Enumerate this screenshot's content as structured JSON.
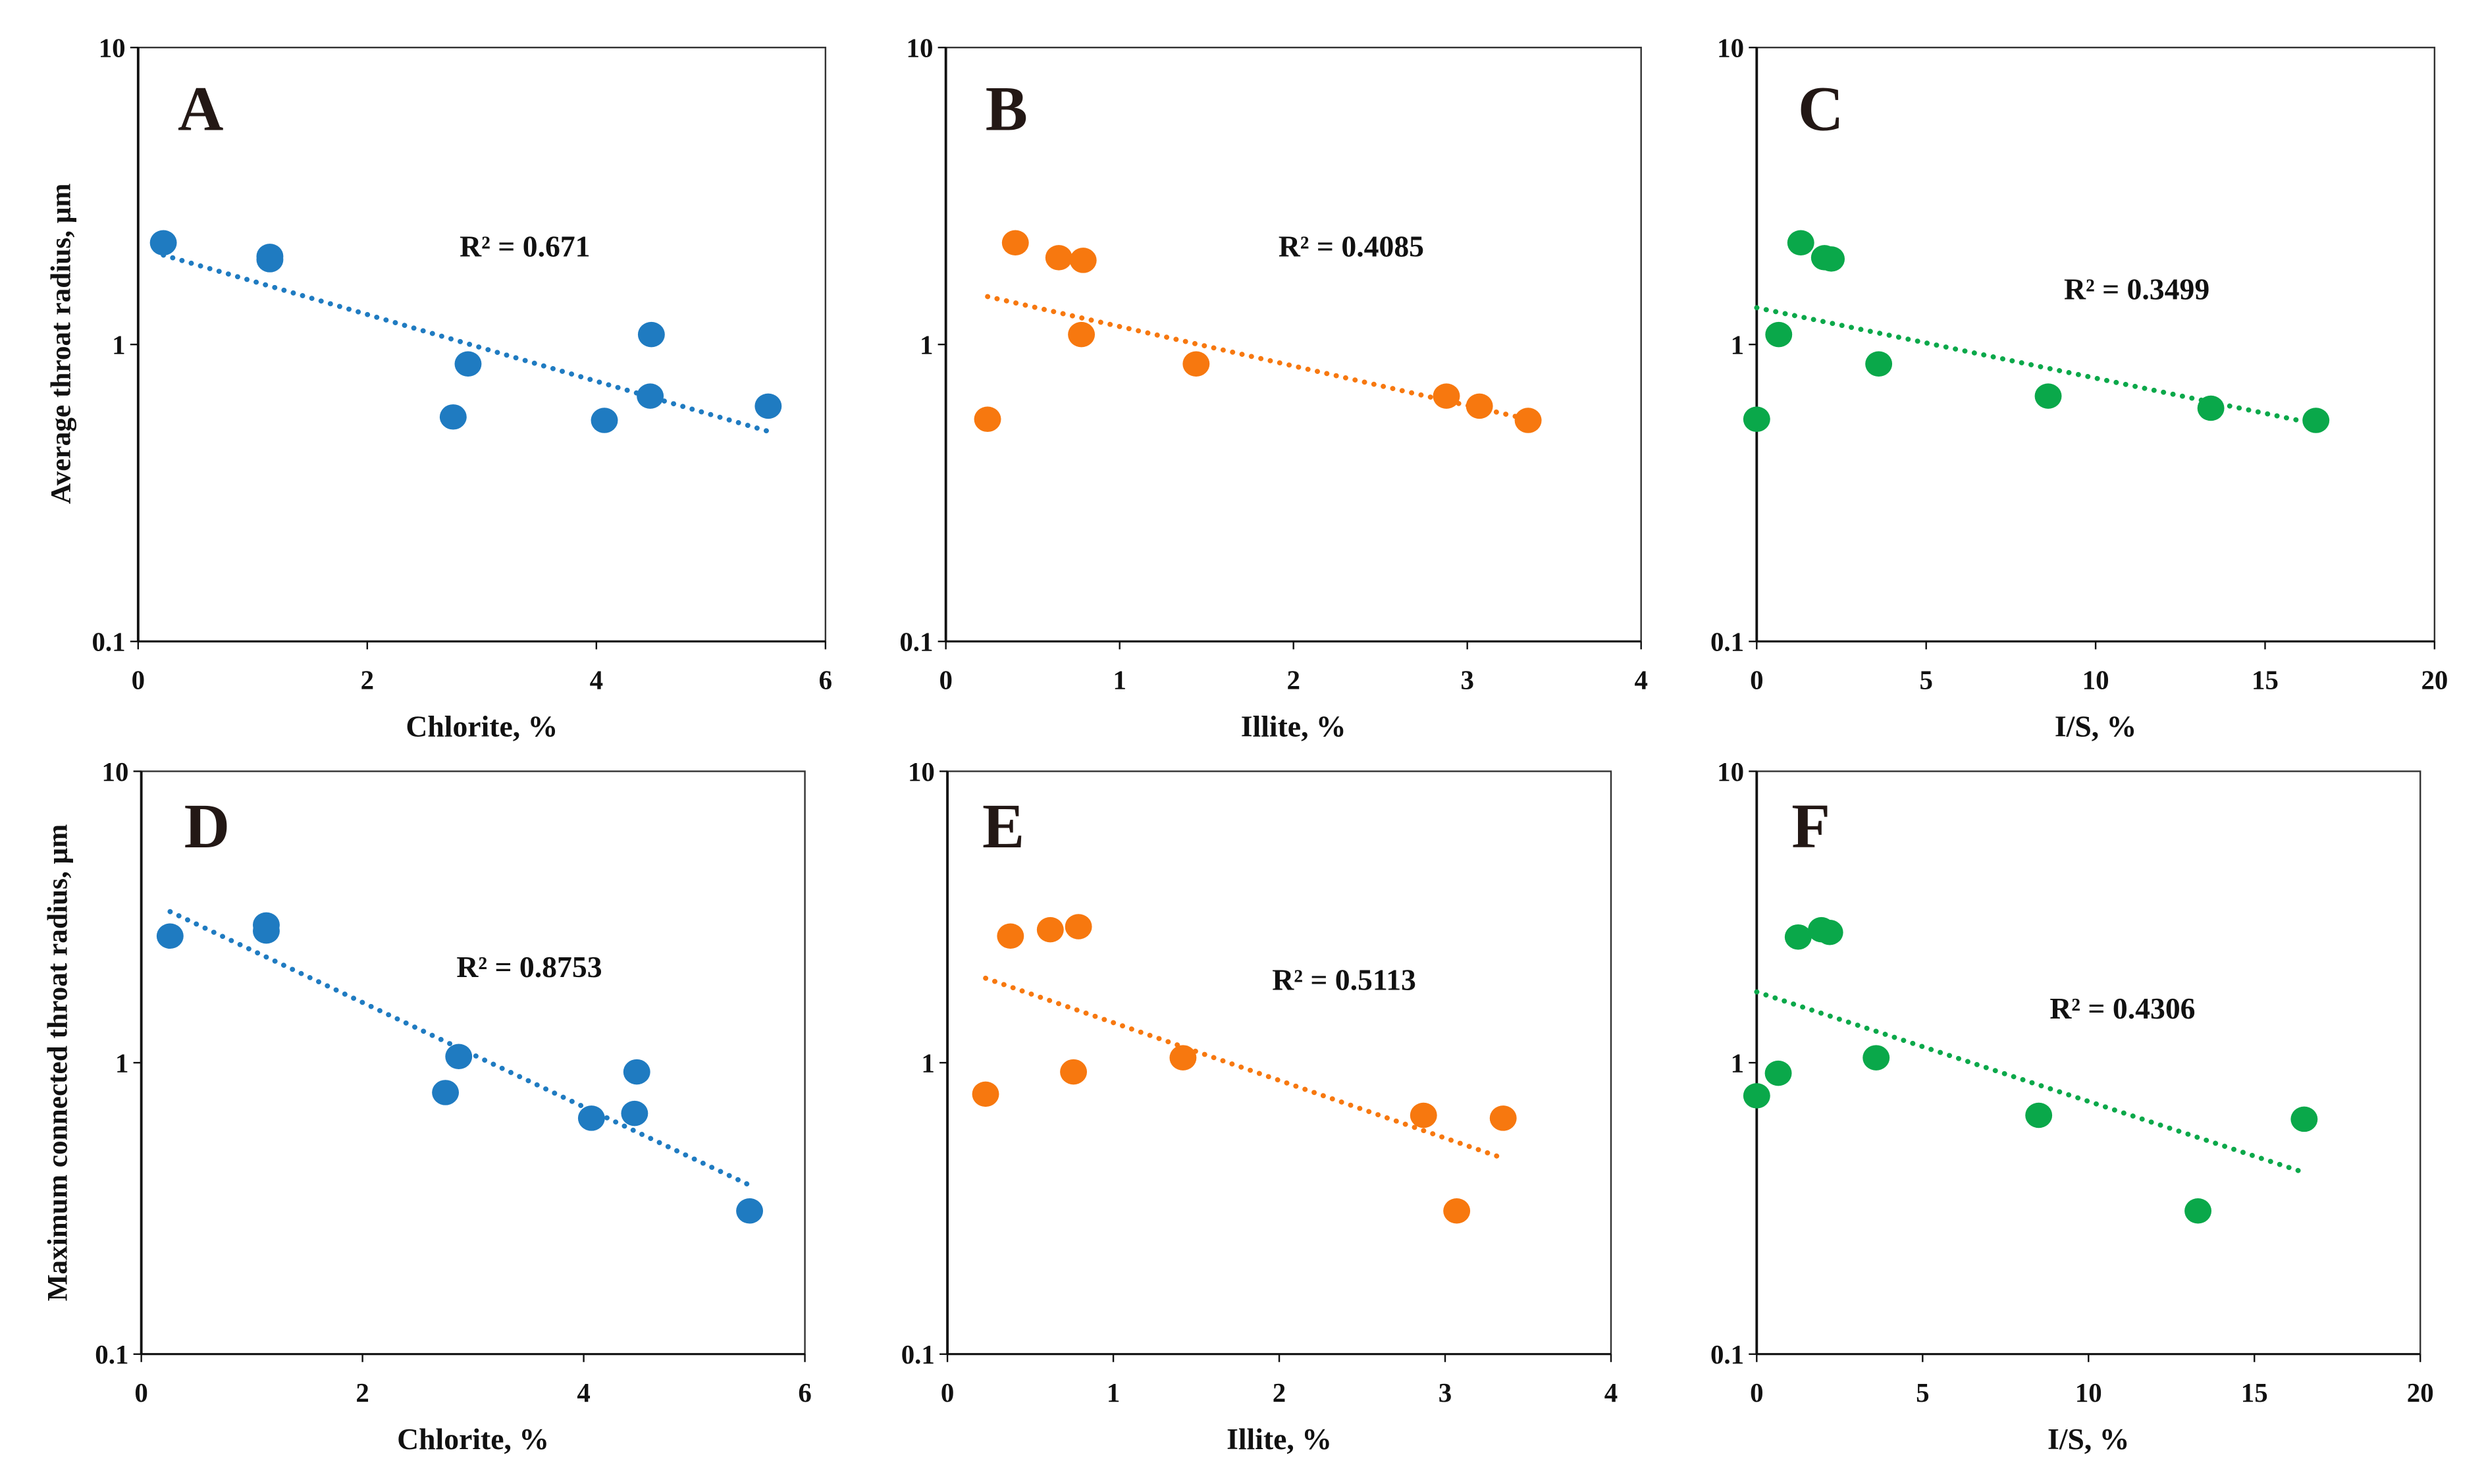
{
  "chart_data": [
    {
      "panel": "A",
      "type": "scatter",
      "xlabel": "Chlorite, %",
      "ylabel": "Average throat radius, μm",
      "xlim": [
        0,
        6
      ],
      "ylim": [
        0.1,
        10
      ],
      "yscale": "log",
      "xticks": [
        "0",
        "2",
        "4",
        "6"
      ],
      "yticks": [
        "0.1",
        "1",
        "10"
      ],
      "color": "#1f7bc1",
      "r2": "R² = 0.671",
      "x": [
        0.22,
        1.15,
        1.15,
        2.75,
        2.88,
        4.07,
        4.47,
        4.48,
        5.5
      ],
      "y": [
        2.2,
        1.93,
        1.98,
        0.57,
        0.86,
        0.555,
        0.67,
        1.08,
        0.62
      ],
      "trend": {
        "x": [
          0.22,
          5.5
        ],
        "y": [
          2.0,
          0.51
        ]
      }
    },
    {
      "panel": "B",
      "type": "scatter",
      "xlabel": "Illite, %",
      "ylabel": "",
      "xlim": [
        0,
        4
      ],
      "ylim": [
        0.1,
        10
      ],
      "yscale": "log",
      "xticks": [
        "0",
        "1",
        "2",
        "3",
        "4"
      ],
      "yticks": [
        "0.1",
        "1",
        "10"
      ],
      "color": "#f7780f",
      "r2": "R² = 0.4085",
      "x": [
        0.24,
        0.4,
        0.65,
        0.79,
        0.78,
        1.44,
        2.88,
        3.07,
        3.35
      ],
      "y": [
        0.56,
        2.2,
        1.96,
        1.92,
        1.08,
        0.86,
        0.67,
        0.62,
        0.555
      ],
      "trend": {
        "x": [
          0.24,
          3.35
        ],
        "y": [
          1.45,
          0.56
        ]
      }
    },
    {
      "panel": "C",
      "type": "scatter",
      "xlabel": "I/S, %",
      "ylabel": "",
      "xlim": [
        0,
        20
      ],
      "ylim": [
        0.1,
        10
      ],
      "yscale": "log",
      "xticks": [
        "0",
        "5",
        "10",
        "15",
        "20"
      ],
      "yticks": [
        "0.1",
        "1",
        "10"
      ],
      "color": "#0aa84a",
      "r2": "R² = 0.3499",
      "x": [
        0,
        0.65,
        1.3,
        2.0,
        2.2,
        3.6,
        8.6,
        13.4,
        16.5
      ],
      "y": [
        0.56,
        1.08,
        2.2,
        1.96,
        1.94,
        0.86,
        0.67,
        0.61,
        0.555
      ],
      "trend": {
        "x": [
          0,
          16.5
        ],
        "y": [
          1.33,
          0.54
        ]
      }
    },
    {
      "panel": "D",
      "type": "scatter",
      "xlabel": "Chlorite, %",
      "ylabel": "Maximum connected throat radius, μm",
      "xlim": [
        0,
        6
      ],
      "ylim": [
        0.1,
        10
      ],
      "yscale": "log",
      "xticks": [
        "0",
        "2",
        "4",
        "6"
      ],
      "yticks": [
        "0.1",
        "1",
        "10"
      ],
      "color": "#1f7bc1",
      "r2": "R² = 0.8753",
      "x": [
        0.26,
        1.13,
        1.13,
        2.75,
        2.87,
        4.07,
        4.48,
        4.46,
        5.5
      ],
      "y": [
        2.72,
        2.97,
        2.83,
        0.79,
        1.05,
        0.645,
        0.93,
        0.67,
        0.31
      ],
      "trend": {
        "x": [
          0.26,
          5.5
        ],
        "y": [
          3.3,
          0.38
        ]
      }
    },
    {
      "panel": "E",
      "type": "scatter",
      "xlabel": "Illite, %",
      "ylabel": "",
      "xlim": [
        0,
        4
      ],
      "ylim": [
        0.1,
        10
      ],
      "yscale": "log",
      "xticks": [
        "0",
        "1",
        "2",
        "3",
        "4"
      ],
      "yticks": [
        "0.1",
        "1",
        "10"
      ],
      "color": "#f7780f",
      "r2": "R² = 0.5113",
      "x": [
        0.23,
        0.38,
        0.62,
        0.79,
        0.76,
        1.42,
        2.87,
        3.07,
        3.35
      ],
      "y": [
        0.78,
        2.72,
        2.86,
        2.93,
        0.93,
        1.04,
        0.66,
        0.31,
        0.645
      ],
      "trend": {
        "x": [
          0.23,
          3.35
        ],
        "y": [
          1.95,
          0.47
        ]
      }
    },
    {
      "panel": "F",
      "type": "scatter",
      "xlabel": "I/S, %",
      "ylabel": "",
      "xlim": [
        0,
        20
      ],
      "ylim": [
        0.1,
        10
      ],
      "yscale": "log",
      "xticks": [
        "0",
        "5",
        "10",
        "15",
        "20"
      ],
      "yticks": [
        "0.1",
        "1",
        "10"
      ],
      "color": "#0aa84a",
      "r2": "R² = 0.4306",
      "x": [
        0,
        0.65,
        1.25,
        1.95,
        2.2,
        3.6,
        8.5,
        13.3,
        16.5
      ],
      "y": [
        0.77,
        0.92,
        2.7,
        2.86,
        2.8,
        1.04,
        0.66,
        0.31,
        0.64
      ],
      "trend": {
        "x": [
          0,
          16.5
        ],
        "y": [
          1.75,
          0.42
        ]
      }
    }
  ]
}
